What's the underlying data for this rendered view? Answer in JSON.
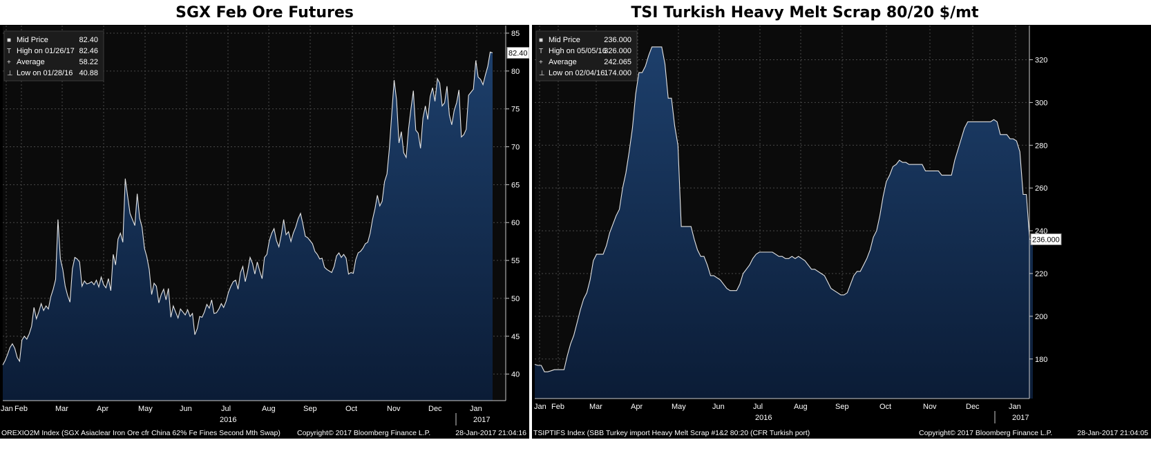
{
  "chart_data": [
    {
      "type": "area",
      "title": "SGX Feb Ore Futures",
      "ylim": [
        36.5,
        86
      ],
      "yticks": [
        40,
        45,
        50,
        55,
        60,
        65,
        70,
        75,
        80,
        85
      ],
      "month_labels": [
        "Jan",
        "Feb",
        "Mar",
        "Apr",
        "May",
        "Jun",
        "Jul",
        "Aug",
        "Sep",
        "Oct",
        "Nov",
        "Dec",
        "Jan"
      ],
      "year_labels": [
        "2016",
        "2017"
      ],
      "last_value_label": "82.40",
      "legend": [
        {
          "label": "Mid Price",
          "value": "82.40"
        },
        {
          "label": "High on 01/26/17",
          "value": "82.46"
        },
        {
          "label": "Average",
          "value": "58.22"
        },
        {
          "label": "Low on 01/28/16",
          "value": "40.88"
        }
      ],
      "footer_left": "OREXIO2M Index (SGX Asiaclear Iron Ore cfr China 62% Fe Fines Second Mth Swap)",
      "footer_mid": "Copyright© 2017 Bloomberg Finance L.P.",
      "footer_right": "28-Jan-2017 21:04:16",
      "series": [
        {
          "values": [
            41.2,
            41.8,
            42.6,
            43.5,
            44.0,
            43.4,
            42.2,
            41.7,
            44.5,
            45.0,
            44.6,
            45.3,
            46.3,
            48.8,
            47.3,
            48.2,
            49.3,
            48.4,
            49.0,
            48.6,
            50.2,
            51.2,
            52.5,
            60.4,
            55.2,
            53.8,
            51.6,
            50.4,
            49.5,
            53.9,
            55.4,
            55.2,
            54.8,
            51.6,
            52.3,
            51.9,
            52.0,
            52.2,
            51.8,
            52.4,
            51.5,
            52.8,
            51.8,
            51.4,
            52.6,
            51.0,
            55.8,
            54.4,
            57.8,
            58.6,
            57.4,
            65.8,
            63.5,
            61.2,
            60.4,
            59.6,
            63.8,
            60.6,
            59.4,
            56.6,
            55.5,
            53.8,
            50.5,
            52.0,
            51.6,
            49.4,
            50.5,
            51.2,
            49.8,
            51.3,
            47.5,
            49.0,
            48.2,
            47.4,
            48.6,
            48.2,
            47.8,
            48.5,
            47.6,
            48.0,
            45.2,
            46.0,
            47.6,
            47.5,
            48.2,
            49.2,
            48.7,
            49.8,
            48.0,
            48.1,
            48.6,
            49.3,
            48.8,
            49.6,
            50.8,
            51.6,
            52.2,
            52.4,
            51.2,
            53.4,
            54.2,
            52.2,
            53.6,
            55.4,
            54.6,
            53.2,
            54.8,
            53.6,
            52.6,
            55.4,
            55.8,
            57.6,
            58.6,
            59.2,
            57.6,
            56.8,
            58.4,
            60.4,
            58.4,
            58.8,
            57.5,
            58.6,
            59.4,
            60.5,
            61.2,
            59.8,
            58.2,
            58.0,
            57.6,
            57.2,
            56.2,
            55.8,
            55.2,
            55.3,
            54.1,
            53.8,
            53.6,
            53.4,
            54.2,
            55.6,
            56.0,
            55.4,
            55.8,
            55.3,
            53.2,
            53.4,
            53.3,
            55.1,
            56.0,
            56.2,
            56.6,
            57.2,
            57.4,
            58.6,
            60.4,
            61.8,
            63.6,
            62.2,
            62.8,
            65.4,
            66.4,
            69.8,
            74.3,
            78.8,
            76.2,
            70.5,
            72.0,
            69.2,
            68.6,
            72.4,
            75.0,
            77.4,
            72.2,
            71.8,
            69.8,
            73.8,
            75.4,
            73.6,
            76.6,
            77.8,
            76.0,
            79.0,
            78.4,
            75.4,
            75.8,
            78.0,
            74.2,
            72.9,
            74.8,
            75.8,
            77.5,
            71.3,
            71.6,
            72.3,
            76.8,
            77.2,
            77.6,
            81.4,
            79.2,
            78.9,
            78.2,
            79.5,
            80.6,
            82.5,
            82.4
          ]
        }
      ]
    },
    {
      "type": "area",
      "title": "TSI Turkish Heavy Melt Scrap 80/20 $/mt",
      "ylim": [
        161.5,
        336
      ],
      "yticks": [
        180,
        200,
        220,
        240,
        260,
        280,
        300,
        320
      ],
      "month_labels": [
        "Jan",
        "Feb",
        "Mar",
        "Apr",
        "May",
        "Jun",
        "Jul",
        "Aug",
        "Sep",
        "Oct",
        "Nov",
        "Dec",
        "Jan"
      ],
      "year_labels": [
        "2016",
        "2017"
      ],
      "last_value_label": "236.000",
      "legend": [
        {
          "label": "Mid Price",
          "value": "236.000"
        },
        {
          "label": "High on 05/05/16",
          "value": "326.000"
        },
        {
          "label": "Average",
          "value": "242.065"
        },
        {
          "label": "Low on 02/04/16",
          "value": "174.000"
        }
      ],
      "footer_left": "TSIPTIFS Index (SBB Turkey import Heavy Melt Scrap #1&2 80:20 (CFR Turkish port)",
      "footer_mid": "Copyright© 2017 Bloomberg Finance L.P.",
      "footer_right": "28-Jan-2017 21:04:05",
      "series": [
        {
          "values": [
            177.5,
            177.0,
            177.0,
            174.0,
            174.0,
            174.5,
            175.0,
            175.0,
            175.0,
            175.0,
            181.5,
            187.0,
            191.0,
            197.0,
            203.0,
            208.0,
            211.0,
            217.0,
            226.0,
            229.0,
            229.0,
            229.0,
            233.0,
            239.0,
            243.0,
            247.0,
            250.0,
            260.0,
            267.0,
            277.0,
            288.0,
            304.0,
            314.0,
            314.0,
            317.0,
            322.0,
            326.0,
            326.0,
            326.0,
            326.0,
            318.0,
            302.0,
            302.0,
            289.0,
            280.0,
            242.0,
            242.0,
            242.0,
            242.0,
            236.0,
            231.0,
            228.0,
            228.0,
            224.0,
            219.0,
            219.0,
            218.0,
            217.0,
            215.0,
            213.0,
            212.0,
            212.0,
            212.0,
            215.0,
            220.0,
            222.0,
            224.0,
            227.0,
            229.0,
            230.0,
            230.0,
            230.0,
            230.0,
            230.0,
            229.0,
            228.0,
            228.0,
            227.0,
            227.0,
            228.0,
            227.0,
            228.0,
            227.0,
            226.0,
            224.0,
            222.0,
            222.0,
            221.0,
            220.0,
            219.0,
            216.0,
            213.0,
            212.0,
            211.0,
            210.0,
            210.0,
            211.0,
            215.0,
            219.0,
            221.0,
            221.0,
            224.0,
            227.0,
            231.0,
            237.0,
            240.0,
            247.0,
            256.0,
            263.0,
            266.0,
            270.0,
            271.0,
            273.0,
            272.0,
            272.0,
            271.0,
            271.0,
            271.0,
            271.0,
            271.0,
            268.0,
            268.0,
            268.0,
            268.0,
            268.0,
            266.0,
            266.0,
            266.0,
            266.0,
            273.0,
            278.0,
            283.0,
            288.0,
            291.0,
            291.0,
            291.0,
            291.0,
            291.0,
            291.0,
            291.0,
            291.0,
            292.0,
            291.0,
            285.0,
            285.0,
            285.0,
            283.0,
            283.0,
            282.0,
            277.0,
            257.0,
            257.0,
            236.0,
            236.0
          ]
        }
      ]
    }
  ]
}
